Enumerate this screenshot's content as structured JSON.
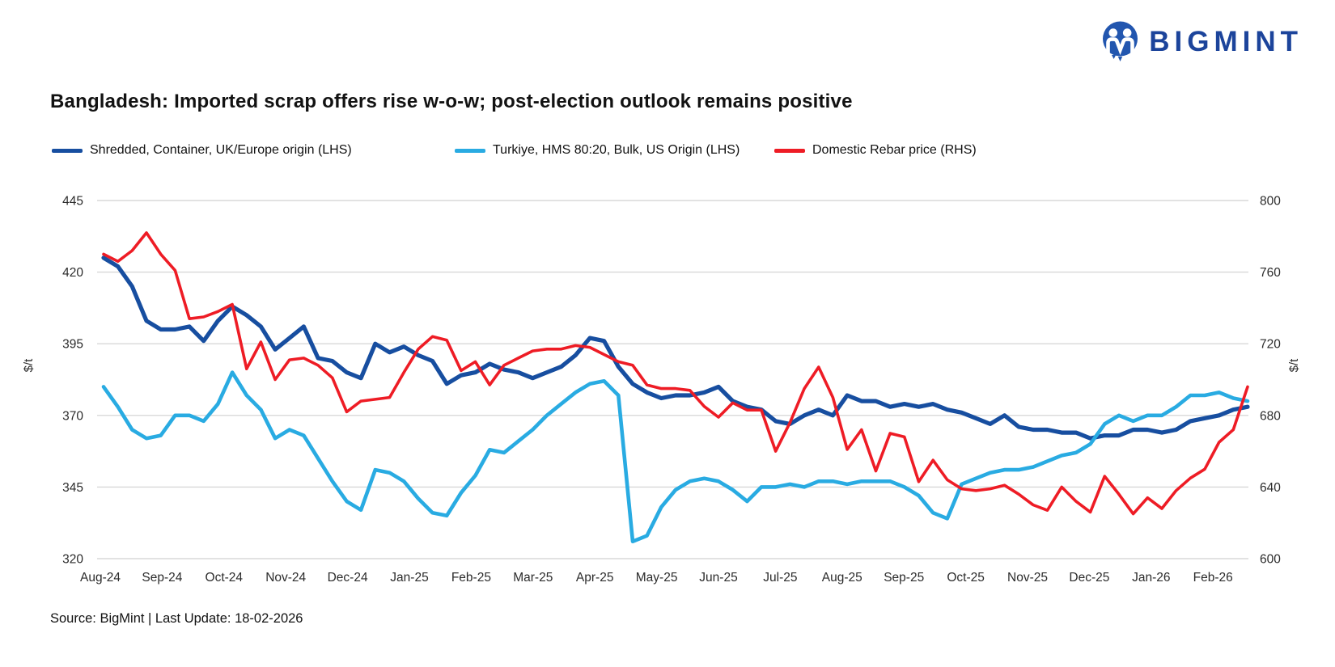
{
  "logo": {
    "text": "BIGMINT",
    "icon": "bigmint-monogram"
  },
  "title": "Bangladesh: Imported scrap offers rise w-o-w; post-election outlook remains positive",
  "legend": [
    {
      "label": "Shredded, Container, UK/Europe origin (LHS)",
      "color": "#174ea0"
    },
    {
      "label": "Turkiye, HMS 80:20, Bulk, US Origin (LHS)",
      "color": "#29abe2"
    },
    {
      "label": "Domestic Rebar price (RHS)",
      "color": "#ee1c25"
    }
  ],
  "source": "Source: BigMint | Last Update: 18-02-2026",
  "chart_data": {
    "type": "line",
    "title": "Bangladesh: Imported scrap offers rise w-o-w; post-election outlook remains positive",
    "x_frequency": "weekly",
    "categories": [
      "Aug-24",
      "Sep-24",
      "Oct-24",
      "Nov-24",
      "Dec-24",
      "Jan-25",
      "Feb-25",
      "Mar-25",
      "Apr-25",
      "May-25",
      "Jun-25",
      "Jul-25",
      "Aug-25",
      "Sep-25",
      "Oct-25",
      "Nov-25",
      "Dec-25",
      "Jan-26",
      "Feb-26"
    ],
    "grid": "horizontal",
    "legend_position": "top",
    "axes": {
      "left": {
        "label": "$/t",
        "ticks": [
          445,
          420,
          395,
          370,
          345,
          320
        ],
        "range": [
          320,
          445
        ]
      },
      "right": {
        "label": "$/t",
        "ticks": [
          800,
          760,
          720,
          680,
          640,
          600
        ],
        "range": [
          600,
          800
        ]
      }
    },
    "series": [
      {
        "name": "Shredded, Container, UK/Europe origin (LHS)",
        "axis": "left",
        "color": "#174ea0",
        "values": [
          425,
          422,
          415,
          403,
          400,
          400,
          401,
          396,
          403,
          408,
          405,
          401,
          393,
          397,
          401,
          390,
          389,
          385,
          383,
          395,
          392,
          394,
          391,
          389,
          381,
          384,
          385,
          388,
          386,
          385,
          383,
          385,
          387,
          391,
          397,
          396,
          387,
          381,
          378,
          376,
          377,
          377,
          378,
          380,
          375,
          373,
          372,
          368,
          367,
          370,
          372,
          370,
          377,
          375,
          375,
          373,
          374,
          373,
          374,
          372,
          371,
          369,
          367,
          370,
          366,
          365,
          365,
          364,
          364,
          362,
          363,
          363,
          365,
          365,
          364,
          365,
          368,
          369,
          370,
          372,
          373
        ]
      },
      {
        "name": "Turkiye, HMS 80:20, Bulk, US Origin (LHS)",
        "axis": "left",
        "color": "#29abe2",
        "values": [
          380,
          373,
          365,
          362,
          363,
          370,
          370,
          368,
          374,
          385,
          377,
          372,
          362,
          365,
          363,
          355,
          347,
          340,
          337,
          351,
          350,
          347,
          341,
          336,
          335,
          343,
          349,
          358,
          357,
          361,
          365,
          370,
          374,
          378,
          381,
          382,
          377,
          326,
          328,
          338,
          344,
          347,
          348,
          347,
          344,
          340,
          345,
          345,
          346,
          345,
          347,
          347,
          346,
          347,
          347,
          347,
          345,
          342,
          336,
          334,
          346,
          348,
          350,
          351,
          351,
          352,
          354,
          356,
          357,
          360,
          367,
          370,
          368,
          370,
          370,
          373,
          377,
          377,
          378,
          376,
          375
        ]
      },
      {
        "name": "Domestic Rebar price (RHS)",
        "axis": "right",
        "color": "#ee1c25",
        "values": [
          770,
          766,
          772,
          782,
          770,
          761,
          734,
          735,
          738,
          742,
          706,
          721,
          700,
          711,
          712,
          708,
          701,
          682,
          688,
          689,
          690,
          704,
          717,
          724,
          722,
          705,
          710,
          697,
          708,
          712,
          716,
          717,
          717,
          719,
          718,
          714,
          710,
          708,
          697,
          695,
          695,
          694,
          685,
          679,
          687,
          683,
          683,
          660,
          676,
          695,
          707,
          690,
          661,
          672,
          649,
          670,
          668,
          643,
          655,
          644,
          639,
          638,
          639,
          641,
          636,
          630,
          627,
          640,
          632,
          626,
          646,
          636,
          625,
          634,
          628,
          638,
          645,
          650,
          665,
          672,
          696
        ]
      }
    ]
  }
}
